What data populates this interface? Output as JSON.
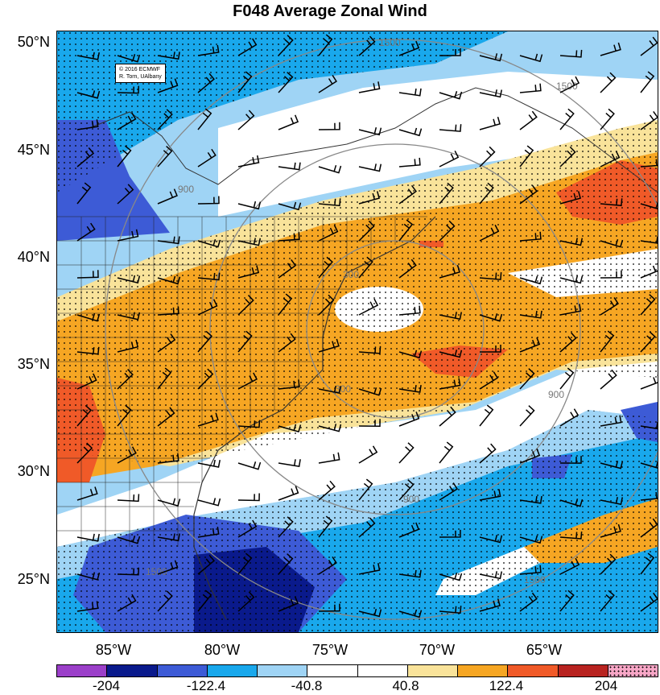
{
  "title": "F048 Average Zonal Wind",
  "credit": {
    "line1": "© 2016 ECMWF",
    "line2": "R. Torn, UAlbany"
  },
  "lat_labels": [
    "50°N",
    "45°N",
    "40°N",
    "35°N",
    "30°N",
    "25°N"
  ],
  "lon_labels": [
    "85°W",
    "80°W",
    "75°W",
    "70°W",
    "65°W"
  ],
  "distance_contour_labels": [
    "300",
    "300",
    "900",
    "900",
    "900",
    "1500",
    "1500",
    "1500",
    "1500"
  ],
  "colorbar": {
    "colors": [
      "#9b3fc9",
      "#0a1a8c",
      "#3d5bd6",
      "#19a8ec",
      "#9fd4f5",
      "#ffffff",
      "#ffffff",
      "#f9e39a",
      "#f6a623",
      "#f05a28",
      "#b82320",
      "#f7a6c6"
    ],
    "labels": [
      "-204",
      "-122.4",
      "-40.8",
      "40.8",
      "122.4",
      "204"
    ]
  }
}
